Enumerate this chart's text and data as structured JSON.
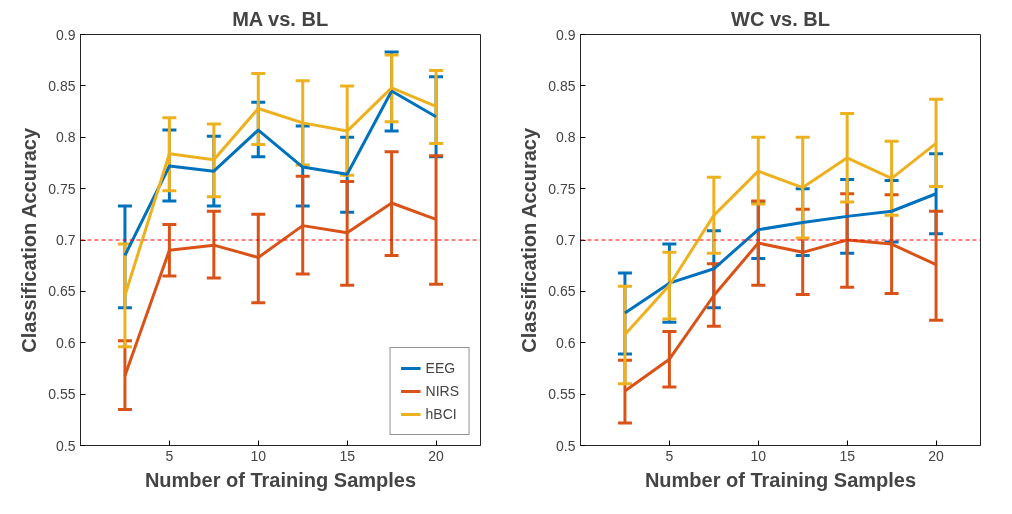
{
  "chart_data": [
    {
      "type": "line",
      "title": "MA vs. BL",
      "xlabel": "Number of Training Samples",
      "ylabel": "Classification Accuracy",
      "x": [
        2.5,
        5,
        7.5,
        10,
        12.5,
        15,
        17.5,
        20
      ],
      "xlim": [
        0,
        22.5
      ],
      "ylim": [
        0.5,
        0.9
      ],
      "xticks": [
        5,
        10,
        15,
        20
      ],
      "yticks": [
        0.5,
        0.55,
        0.6,
        0.65,
        0.7,
        0.75,
        0.8,
        0.85,
        0.9
      ],
      "grid": false,
      "legend": "bottom right",
      "marker": "none",
      "line_style": "solid",
      "series": [
        {
          "name": "EEG",
          "color": "#0072bd",
          "values": [
            0.685,
            0.772,
            0.767,
            0.807,
            0.771,
            0.764,
            0.845,
            0.82
          ],
          "errors": [
            [
              0.634,
              0.733
            ],
            [
              0.738,
              0.807
            ],
            [
              0.733,
              0.801
            ],
            [
              0.781,
              0.834
            ],
            [
              0.733,
              0.811
            ],
            [
              0.727,
              0.8
            ],
            [
              0.806,
              0.883
            ],
            [
              0.781,
              0.859
            ]
          ]
        },
        {
          "name": "NIRS",
          "color": "#d95319",
          "values": [
            0.568,
            0.69,
            0.695,
            0.683,
            0.714,
            0.707,
            0.736,
            0.72
          ],
          "errors": [
            [
              0.535,
              0.602
            ],
            [
              0.665,
              0.715
            ],
            [
              0.663,
              0.728
            ],
            [
              0.639,
              0.725
            ],
            [
              0.667,
              0.762
            ],
            [
              0.656,
              0.757
            ],
            [
              0.685,
              0.786
            ],
            [
              0.657,
              0.782
            ]
          ]
        },
        {
          "name": "hBCI",
          "color": "#edb120",
          "values": [
            0.646,
            0.784,
            0.778,
            0.828,
            0.814,
            0.806,
            0.848,
            0.83
          ],
          "errors": [
            [
              0.596,
              0.696
            ],
            [
              0.748,
              0.819
            ],
            [
              0.742,
              0.813
            ],
            [
              0.793,
              0.862
            ],
            [
              0.773,
              0.855
            ],
            [
              0.763,
              0.85
            ],
            [
              0.815,
              0.88
            ],
            [
              0.794,
              0.865
            ]
          ]
        }
      ],
      "ref_lines": [
        {
          "axis": "y",
          "value": 0.7,
          "color": "#ff0000",
          "line_style": "dashed"
        }
      ]
    },
    {
      "type": "line",
      "title": "WC vs. BL",
      "xlabel": "Number of Training Samples",
      "ylabel": "Classification Accuracy",
      "x": [
        2.5,
        5,
        7.5,
        10,
        12.5,
        15,
        17.5,
        20
      ],
      "xlim": [
        0,
        22.5
      ],
      "ylim": [
        0.5,
        0.9
      ],
      "xticks": [
        5,
        10,
        15,
        20
      ],
      "yticks": [
        0.5,
        0.55,
        0.6,
        0.65,
        0.7,
        0.75,
        0.8,
        0.85,
        0.9
      ],
      "grid": false,
      "marker": "none",
      "line_style": "solid",
      "series": [
        {
          "color": "#0072bd",
          "values": [
            0.629,
            0.658,
            0.672,
            0.71,
            0.717,
            0.723,
            0.728,
            0.745
          ],
          "errors": [
            [
              0.589,
              0.668
            ],
            [
              0.62,
              0.696
            ],
            [
              0.634,
              0.709
            ],
            [
              0.682,
              0.737
            ],
            [
              0.685,
              0.75
            ],
            [
              0.687,
              0.759
            ],
            [
              0.698,
              0.758
            ],
            [
              0.706,
              0.784
            ]
          ]
        },
        {
          "color": "#d95319",
          "values": [
            0.553,
            0.584,
            0.646,
            0.697,
            0.688,
            0.7,
            0.696,
            0.676
          ],
          "errors": [
            [
              0.522,
              0.583
            ],
            [
              0.557,
              0.611
            ],
            [
              0.616,
              0.677
            ],
            [
              0.656,
              0.738
            ],
            [
              0.647,
              0.73
            ],
            [
              0.654,
              0.745
            ],
            [
              0.648,
              0.744
            ],
            [
              0.622,
              0.728
            ]
          ]
        },
        {
          "color": "#edb120",
          "values": [
            0.608,
            0.656,
            0.724,
            0.767,
            0.751,
            0.78,
            0.76,
            0.794
          ],
          "errors": [
            [
              0.56,
              0.655
            ],
            [
              0.623,
              0.688
            ],
            [
              0.687,
              0.761
            ],
            [
              0.735,
              0.8
            ],
            [
              0.702,
              0.8
            ],
            [
              0.737,
              0.823
            ],
            [
              0.724,
              0.796
            ],
            [
              0.752,
              0.837
            ]
          ]
        }
      ],
      "ref_lines": [
        {
          "axis": "y",
          "value": 0.7,
          "color": "#ff0000",
          "line_style": "dashed"
        }
      ]
    }
  ]
}
